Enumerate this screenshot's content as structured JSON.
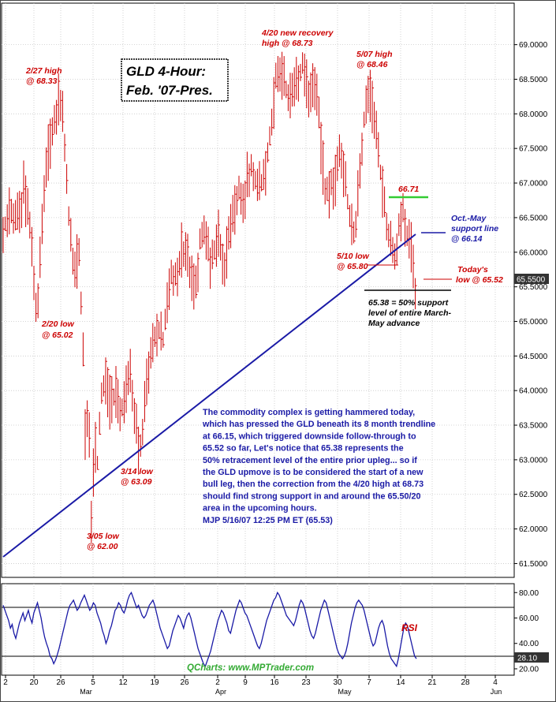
{
  "title_box": {
    "line1": "GLD 4-Hour:",
    "line2": "Feb. '07-Pres."
  },
  "chart_data": [
    {
      "type": "bar",
      "subtype": "ohlc-price",
      "y_axis_side": "right",
      "ylim": [
        61.3,
        69.6
      ],
      "y_ticks": [
        "69.0000",
        "68.5000",
        "68.0000",
        "67.5000",
        "67.0000",
        "66.5000",
        "66.0000",
        "65.5000",
        "65.0000",
        "64.5000",
        "64.0000",
        "63.5000",
        "63.0000",
        "62.5000",
        "62.0000",
        "61.5000"
      ],
      "last_price_label": "65.5500",
      "grid": true,
      "key_points": [
        {
          "date": "2/20",
          "value": 65.02
        },
        {
          "date": "2/27",
          "value": 68.33
        },
        {
          "date": "3/05",
          "value": 62.0
        },
        {
          "date": "3/14",
          "value": 63.09
        },
        {
          "date": "4/20",
          "value": 68.73
        },
        {
          "date": "5/07",
          "value": 68.46
        },
        {
          "date": "5/10",
          "value": 65.8
        },
        {
          "date": "5/14",
          "value": 66.71
        },
        {
          "date": "5/16",
          "value": 65.52
        }
      ],
      "trendline": {
        "from_value": 61.55,
        "to_value": 66.15
      },
      "level_66_71": 66.71,
      "level_65_38": 65.38,
      "colors": {
        "bars": "#cc0000",
        "trendline": "#1a1aa6",
        "resistance": "#33cc33"
      }
    },
    {
      "type": "line",
      "name": "RSI",
      "ylim": [
        15,
        87
      ],
      "y_ticks": [
        "80.00",
        "60.00",
        "40.00",
        "20.00"
      ],
      "reference_lines": [
        70,
        30
      ],
      "last_value_label": "28.10",
      "values": [
        70,
        66,
        62,
        58,
        52,
        55,
        48,
        44,
        50,
        56,
        60,
        64,
        58,
        62,
        66,
        60,
        56,
        64,
        68,
        72,
        66,
        60,
        52,
        45,
        40,
        36,
        30,
        28,
        24,
        27,
        31,
        36,
        42,
        48,
        54,
        60,
        66,
        70,
        72,
        74,
        70,
        66,
        68,
        72,
        75,
        78,
        74,
        70,
        66,
        68,
        72,
        70,
        64,
        60,
        56,
        50,
        46,
        40,
        44,
        50,
        54,
        60,
        66,
        68,
        72,
        70,
        66,
        64,
        68,
        74,
        78,
        80,
        76,
        72,
        68,
        70,
        66,
        62,
        60,
        62,
        66,
        70,
        72,
        74,
        70,
        64,
        58,
        52,
        48,
        44,
        40,
        36,
        38,
        44,
        50,
        54,
        58,
        62,
        60,
        56,
        52,
        58,
        62,
        64,
        60,
        54,
        48,
        42,
        36,
        32,
        28,
        24,
        22,
        26,
        30,
        34,
        40,
        46,
        52,
        58,
        62,
        66,
        64,
        60,
        56,
        50,
        48,
        54,
        60,
        66,
        70,
        74,
        72,
        68,
        64,
        62,
        58,
        54,
        50,
        46,
        42,
        38,
        36,
        40,
        46,
        52,
        58,
        62,
        66,
        70,
        74,
        76,
        80,
        78,
        74,
        70,
        66,
        62,
        60,
        58,
        56,
        54,
        58,
        64,
        70,
        74,
        72,
        68,
        62,
        56,
        50,
        46,
        44,
        48,
        54,
        60,
        66,
        70,
        74,
        72,
        66,
        60,
        54,
        48,
        42,
        36,
        32,
        30,
        28,
        30,
        34,
        40,
        48,
        56,
        62,
        68,
        72,
        74,
        72,
        70,
        66,
        60,
        54,
        48,
        42,
        38,
        40,
        46,
        52,
        56,
        58,
        54,
        46,
        38,
        32,
        28,
        26,
        24,
        22,
        28,
        36,
        44,
        52,
        56,
        54,
        48,
        42,
        36,
        30,
        28
      ]
    }
  ],
  "x_axis": {
    "tick_labels": [
      "2",
      "20",
      "26",
      "5",
      "12",
      "19",
      "26",
      "2",
      "9",
      "16",
      "23",
      "30",
      "7",
      "14",
      "21",
      "28",
      "4"
    ],
    "month_labels": [
      "Mar",
      "Apr",
      "May",
      "Jun"
    ]
  },
  "annotations": {
    "a_0227": {
      "l1": "2/27 high",
      "l2": "@ 68.33"
    },
    "a_0220": {
      "l1": "2/20 low",
      "l2": "@ 65.02"
    },
    "a_0305": {
      "l1": "3/05 low",
      "l2": "@ 62.00"
    },
    "a_0314": {
      "l1": "3/14 low",
      "l2": "@ 63.09"
    },
    "a_0420": {
      "l1": "4/20 new recovery",
      "l2": "high @ 68.73"
    },
    "a_0507": {
      "l1": "5/07 high",
      "l2": "@ 68.46"
    },
    "a_6671": "66.71",
    "a_support": {
      "l1": "Oct.-May",
      "l2": "support line",
      "l3": "@ 66.14"
    },
    "a_0510": {
      "l1": "5/10 low",
      "l2": "@ 65.80"
    },
    "a_today": {
      "l1": "Today's",
      "l2": "low @ 65.52"
    },
    "a_6538": {
      "l1": "65.38 = 50% support",
      "l2": "level of entire March-",
      "l3": "May advance"
    },
    "a_rsi": "RSI"
  },
  "commentary": [
    "The commodity complex is getting hammered today,",
    "which has pressed the GLD beneath its 8 month trendline",
    "at 66.15, which triggered downside follow-through to",
    "65.52 so far, Let's notice that 65.38 represents the",
    "50% retracement level of the entire prior upleg... so if",
    "the GLD upmove is to be considered the start of a new",
    "bull leg, then the correction from the 4/20 high at 68.73",
    "should find strong support in and around the 65.50/20",
    "area in the upcoming hours.",
    "MJP  5/16/07  12:25 PM ET (65.53)"
  ],
  "credit": "QCharts: www.MPTrader.com"
}
